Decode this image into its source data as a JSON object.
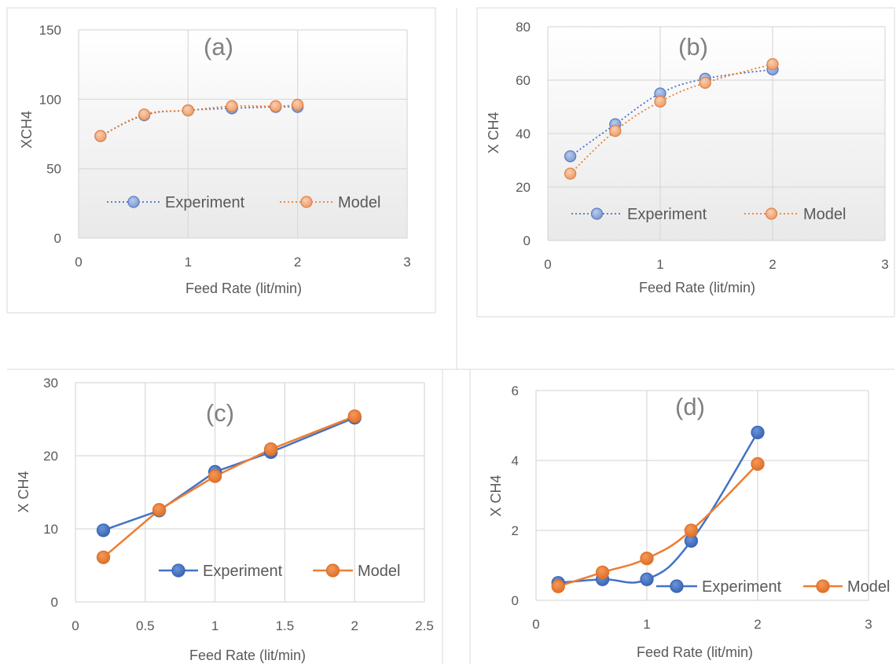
{
  "colors": {
    "experiment": "#4472C4",
    "model": "#ED7D31",
    "experiment_light": "#8FA9DC",
    "model_light": "#F4B183",
    "grid": "#D9D9D9",
    "text": "#595959",
    "panel_label": "#808080"
  },
  "chart_data": [
    {
      "type": "line",
      "panel_label": "(a)",
      "xlabel": "Feed Rate  (lit/min)",
      "ylabel": "XCH4",
      "xlim": [
        0,
        3
      ],
      "ylim": [
        0,
        150
      ],
      "x_ticks": [
        "0",
        "1",
        "2",
        "3"
      ],
      "y_ticks": [
        "0",
        "50",
        "100",
        "150"
      ],
      "line_style": "dotted",
      "legend_placement": "inside-bottom",
      "series": [
        {
          "name": "Experiment",
          "x": [
            0.2,
            0.6,
            1.0,
            1.4,
            1.8,
            2.0
          ],
          "values": [
            73.5,
            88.5,
            92,
            93.5,
            94.5,
            94.5
          ]
        },
        {
          "name": "Model",
          "x": [
            0.2,
            0.6,
            1.0,
            1.4,
            1.8,
            2.0
          ],
          "values": [
            73.5,
            89,
            92,
            95,
            95,
            96
          ]
        }
      ]
    },
    {
      "type": "line",
      "panel_label": "(b)",
      "xlabel": "Feed Rate (lit/min)",
      "ylabel": "X CH4",
      "xlim": [
        0,
        3
      ],
      "ylim": [
        0,
        80
      ],
      "x_ticks": [
        "0",
        "1",
        "2",
        "3"
      ],
      "y_ticks": [
        "0",
        "20",
        "40",
        "60",
        "80"
      ],
      "line_style": "dotted",
      "legend_placement": "inside-bottom",
      "series": [
        {
          "name": "Experiment",
          "x": [
            0.2,
            0.6,
            1.0,
            1.4,
            2.0
          ],
          "values": [
            31.5,
            43.5,
            55,
            60.5,
            64
          ]
        },
        {
          "name": "Model",
          "x": [
            0.2,
            0.6,
            1.0,
            1.4,
            2.0
          ],
          "values": [
            25,
            41,
            52,
            59,
            66
          ]
        }
      ]
    },
    {
      "type": "line",
      "panel_label": "(c)",
      "xlabel": "Feed Rate (lit/min)",
      "ylabel": "X CH4",
      "xlim": [
        0,
        2.5
      ],
      "ylim": [
        0,
        30
      ],
      "x_ticks": [
        "0",
        "0.5",
        "1",
        "1.5",
        "2",
        "2.5"
      ],
      "y_ticks": [
        "0",
        "10",
        "20",
        "30"
      ],
      "line_style": "solid",
      "legend_placement": "inside-bottom",
      "series": [
        {
          "name": "Experiment",
          "x": [
            0.2,
            0.6,
            1.0,
            1.4,
            2.0
          ],
          "values": [
            9.8,
            12.5,
            17.8,
            20.5,
            25.2
          ]
        },
        {
          "name": "Model",
          "x": [
            0.2,
            0.6,
            1.0,
            1.4,
            2.0
          ],
          "values": [
            6.1,
            12.6,
            17.2,
            20.9,
            25.4
          ]
        }
      ]
    },
    {
      "type": "line",
      "panel_label": "(d)",
      "xlabel": "Feed Rate (lit/min)",
      "ylabel": "X CH4",
      "xlim": [
        0,
        3
      ],
      "ylim": [
        0,
        6
      ],
      "x_ticks": [
        "0",
        "1",
        "2",
        "3"
      ],
      "y_ticks": [
        "0",
        "2",
        "4",
        "6"
      ],
      "line_style": "smooth",
      "legend_placement": "inside-bottom-right",
      "series": [
        {
          "name": "Experiment",
          "x": [
            0.2,
            0.6,
            1.0,
            1.4,
            2.0
          ],
          "values": [
            0.5,
            0.6,
            0.6,
            1.7,
            4.8
          ]
        },
        {
          "name": "Model",
          "x": [
            0.2,
            0.6,
            1.0,
            1.4,
            2.0
          ],
          "values": [
            0.4,
            0.8,
            1.2,
            2.0,
            3.9
          ]
        }
      ]
    }
  ]
}
